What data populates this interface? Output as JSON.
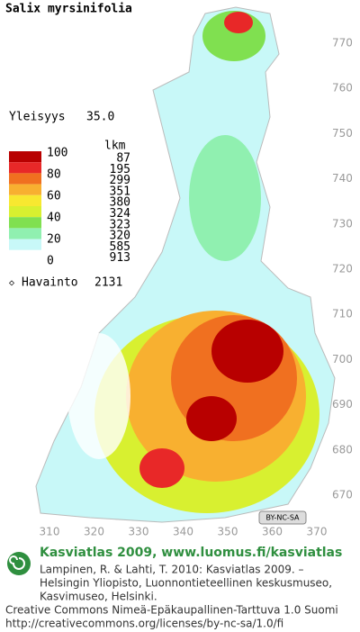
{
  "title": "Salix myrsinifolia",
  "frequency": {
    "label": "Yleisyys",
    "value": "35.0"
  },
  "legend": {
    "scale": [
      "100",
      "80",
      "60",
      "40",
      "20",
      "0"
    ],
    "count_header": "lkm",
    "counts": [
      "87",
      "195",
      "299",
      "351",
      "380",
      "324",
      "323",
      "320",
      "585",
      "913"
    ],
    "colors": [
      "#b80000",
      "#e82828",
      "#f07020",
      "#f8b030",
      "#f8e830",
      "#d8f030",
      "#80e050",
      "#90f0b0",
      "#c8f8f8",
      "#ffffff"
    ]
  },
  "observations": {
    "label": "Havainto",
    "value": "2131"
  },
  "y_axis": [
    "770",
    "760",
    "750",
    "740",
    "730",
    "720",
    "710",
    "700",
    "690",
    "680",
    "670"
  ],
  "x_axis": [
    "310",
    "320",
    "330",
    "340",
    "350",
    "360",
    "370"
  ],
  "license_badge": "BY-NC-SA",
  "footer": {
    "heading": "Kasviatlas 2009, www.luomus.fi/kasviatlas",
    "citation": [
      "Lampinen, R. & Lahti, T. 2010: Kasviatlas 2009. –",
      "Helsingin Yliopisto, Luonnontieteellinen keskusmuseo,",
      "Kasvimuseo, Helsinki."
    ],
    "license": [
      "Creative Commons Nimeä-Epäkaupallinen-Tarttuva 1.0 Suomi",
      "http://creativecommons.org/licenses/by-nc-sa/1.0/fi"
    ]
  }
}
